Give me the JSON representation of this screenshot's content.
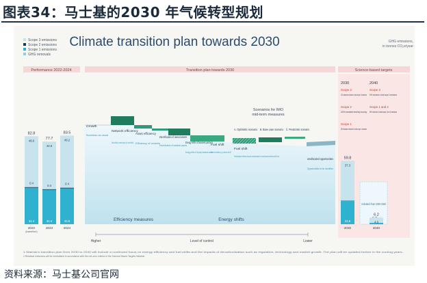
{
  "header": {
    "title": "图表34：马士基的2030 年气候转型规划"
  },
  "source": {
    "text": "资料来源：马士基公司官网"
  },
  "figure": {
    "title": "Climate transition plan towards 2030",
    "unit_note": [
      "GHG emissions,",
      "in tonnes CO₂e/year"
    ],
    "legend": [
      {
        "label": "Scope 3 emissions",
        "color": "#c7e3ee"
      },
      {
        "label": "Scope 2 emissions",
        "color": "#1e3a57"
      },
      {
        "label": "Scope 1 emissions",
        "color": "#2fb2cf"
      },
      {
        "label": "GHG removals",
        "color": "#8ad0e0"
      }
    ],
    "section_headers": {
      "performance": "Performance 2022-2024",
      "plan": "Transition plan towards 2030",
      "targets": "Science-based targets"
    },
    "bars": [
      {
        "label": "2022",
        "sublabel": "(baseline)",
        "total": "82.8",
        "scope3": "48.0",
        "scope2": "0.4",
        "scope1": "34.4"
      },
      {
        "label": "2023",
        "total": "77.7",
        "scope3": "44.9",
        "scope2": "0.4",
        "scope1": "32.4"
      },
      {
        "label": "2024",
        "total": "83.5",
        "scope3": "49.2",
        "scope2": "0.4",
        "scope1": "33.8"
      },
      {
        "label": "2030",
        "total": "59.8",
        "scope3": "37.3",
        "scope1": "22.5"
      },
      {
        "label": "2040",
        "total": "6.2",
        "scope3": "4.9",
        "scope1": "1.3"
      }
    ],
    "bridge_steps": [
      {
        "title": "Growth",
        "desc": "Business as usual"
      },
      {
        "title": "Network efficiency",
        "desc": "Network efficiency, increased transport (incl. vessel retrofits)"
      },
      {
        "title": "Asset efficiency",
        "desc": "Efficiency of vessels"
      },
      {
        "title": "Electrification of owned assets",
        "desc": "Electrification of landside assets"
      },
      {
        "title": "Energy shifts of business partners",
        "desc": "Energy shifts of 3rd party landside assets"
      },
      {
        "title": "Fuel shift",
        "desc": "Green fuel transition (e.g. methanol and DF)"
      },
      {
        "title": "Fuel shift",
        "desc": "Potential degree of different outcomes via implementation of a market-based mechanism at IMO level"
      },
      {
        "title": "Unallocated opportunities",
        "desc": "Opportunities to be identified"
      }
    ],
    "scenarios": {
      "heading": [
        "Scenarios for IMO",
        "mid-term measures"
      ],
      "items": [
        {
          "label": "A. Optimistic scenario"
        },
        {
          "label": "B. Base case scenario"
        },
        {
          "label": "C. Pessimistic scenario"
        }
      ]
    },
    "bottom_labels": {
      "efficiency": "Efficiency measures",
      "energy": "Energy shifts"
    },
    "axis": {
      "higher": "Higher",
      "control": "Level of control",
      "lower": "Lower"
    },
    "targets": {
      "year_a": "2030",
      "year_b": "2040",
      "col_2030": [
        {
          "scope": "Scope 3",
          "text": "22% absolute reduction in total scope 3 emissions"
        },
        {
          "scope": "Scope 2",
          "text": "100% renewable electricity sourcing"
        },
        {
          "scope": "Scope 1",
          "text": "35% absolute reduction in total scope 1 emission"
        }
      ],
      "col_2040": [
        {
          "scope": "Scope 3",
          "text": "90% reduction in total scope 3 emissions"
        },
        {
          "scope": "Scope 1 and 2",
          "text": "96% reduction in total scope 1 and 2 emissions"
        }
      ],
      "removal_note": "Activated from 2030-2040",
      "net_value": "6.2"
    },
    "footnotes": [
      "1  Maersk's transition plan from 2030 to 2040 will include a continued focus on energy efficiency and fuel shifts and the impacts of decarbonisation such as regulation, technology and market growth. The plan will be updated further in the coming years.",
      "2  Residual emissions will be neutralised in accordance with the net-zero criteria of the Science Based Targets initiative."
    ]
  },
  "chart_data": {
    "type": "bar",
    "unit": "GHG emissions, in tonnes CO₂e/year",
    "categories": [
      "2022 (baseline)",
      "2023",
      "2024",
      "2030",
      "2040"
    ],
    "series": [
      {
        "name": "Scope 3 emissions",
        "values": [
          48.0,
          44.9,
          49.2,
          37.3,
          4.9
        ]
      },
      {
        "name": "Scope 2 emissions",
        "values": [
          0.4,
          0.4,
          0.4,
          null,
          null
        ]
      },
      {
        "name": "Scope 1 emissions",
        "values": [
          34.4,
          32.4,
          33.8,
          22.5,
          1.3
        ]
      }
    ],
    "totals": [
      82.8,
      77.7,
      83.5,
      59.8,
      6.2
    ]
  }
}
